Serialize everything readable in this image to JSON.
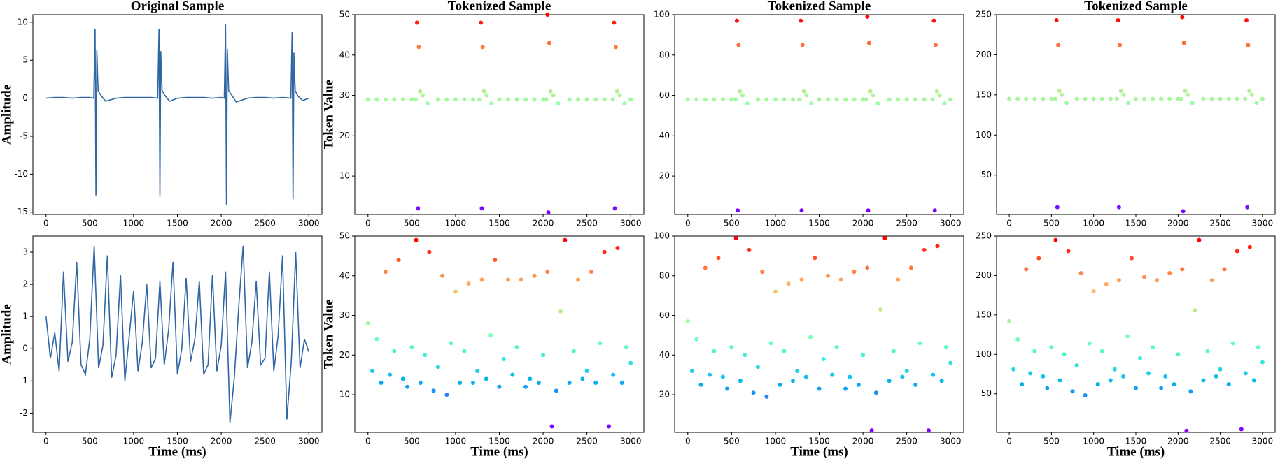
{
  "chart_data": [
    {
      "type": "line",
      "title": "Original Sample",
      "ylabel": "Amplitude",
      "color": "#2f66a3",
      "x": [
        0,
        100,
        200,
        300,
        400,
        500,
        545,
        560,
        570,
        580,
        595,
        625,
        680,
        800,
        900,
        1000,
        1100,
        1200,
        1275,
        1290,
        1300,
        1310,
        1325,
        1355,
        1410,
        1500,
        1600,
        1700,
        1800,
        1900,
        2000,
        2035,
        2050,
        2060,
        2070,
        2085,
        2115,
        2170,
        2300,
        2400,
        2500,
        2600,
        2700,
        2795,
        2810,
        2820,
        2830,
        2845,
        2875,
        2930,
        3000
      ],
      "values": [
        0,
        0.1,
        0.1,
        0,
        0.1,
        0.1,
        0,
        9.1,
        -12.8,
        6.3,
        1,
        0.4,
        -0.4,
        0,
        0.1,
        0.1,
        0.1,
        0.1,
        0,
        9.1,
        -12.8,
        6.2,
        1,
        0.4,
        -0.4,
        0,
        0.1,
        0.1,
        0.1,
        0,
        0.1,
        0,
        9.7,
        -14,
        6.5,
        1,
        0.5,
        -0.5,
        0,
        0.1,
        0.1,
        0,
        0.1,
        0,
        8.7,
        -13.3,
        6,
        1,
        0.3,
        -0.3,
        0
      ],
      "xlim": [
        -150,
        3150
      ],
      "xticks": [
        0,
        500,
        1000,
        1500,
        2000,
        2500,
        3000
      ],
      "ylim": [
        -15.3,
        11
      ],
      "yticks": [
        -15,
        -10,
        -5,
        0,
        5,
        10
      ]
    },
    {
      "type": "scatter",
      "title": "Tokenized Sample",
      "ylabel": "Token Value",
      "colormap": "rainbow",
      "x": [
        0,
        100,
        200,
        300,
        400,
        500,
        545,
        560,
        570,
        580,
        595,
        625,
        680,
        800,
        900,
        1000,
        1100,
        1200,
        1275,
        1290,
        1300,
        1310,
        1325,
        1355,
        1410,
        1500,
        1600,
        1700,
        1800,
        1900,
        2000,
        2035,
        2050,
        2060,
        2070,
        2085,
        2115,
        2170,
        2300,
        2400,
        2500,
        2600,
        2700,
        2795,
        2810,
        2820,
        2830,
        2845,
        2875,
        2930,
        3000
      ],
      "values": [
        29,
        29,
        29,
        29,
        29,
        29,
        29,
        48,
        2,
        42,
        31,
        30,
        28,
        29,
        29,
        29,
        29,
        29,
        29,
        48,
        2,
        42,
        31,
        30,
        28,
        29,
        29,
        29,
        29,
        29,
        29,
        29,
        50,
        1,
        43,
        31,
        30,
        28,
        29,
        29,
        29,
        29,
        29,
        29,
        48,
        2,
        42,
        31,
        30,
        28,
        29
      ],
      "xlim": [
        -150,
        3150
      ],
      "xticks": [
        0,
        500,
        1000,
        1500,
        2000,
        2500,
        3000
      ],
      "ylim": [
        0.5,
        50
      ],
      "yticks": [
        10,
        20,
        30,
        40,
        50
      ]
    },
    {
      "type": "scatter",
      "title": "Tokenized Sample",
      "colormap": "rainbow",
      "x": [
        0,
        100,
        200,
        300,
        400,
        500,
        545,
        560,
        570,
        580,
        595,
        625,
        680,
        800,
        900,
        1000,
        1100,
        1200,
        1275,
        1290,
        1300,
        1310,
        1325,
        1355,
        1410,
        1500,
        1600,
        1700,
        1800,
        1900,
        2000,
        2035,
        2050,
        2060,
        2070,
        2085,
        2115,
        2170,
        2300,
        2400,
        2500,
        2600,
        2700,
        2795,
        2810,
        2820,
        2830,
        2845,
        2875,
        2930,
        3000
      ],
      "values": [
        58,
        58,
        58,
        58,
        58,
        58,
        58,
        97,
        3,
        85,
        62,
        60,
        56,
        58,
        58,
        58,
        58,
        58,
        58,
        97,
        3,
        85,
        62,
        60,
        56,
        58,
        58,
        58,
        58,
        58,
        58,
        58,
        99,
        3,
        86,
        62,
        60,
        56,
        58,
        58,
        58,
        58,
        58,
        58,
        97,
        3,
        85,
        62,
        60,
        56,
        58
      ],
      "xlim": [
        -150,
        3150
      ],
      "xticks": [
        0,
        500,
        1000,
        1500,
        2000,
        2500,
        3000
      ],
      "ylim": [
        1,
        100
      ],
      "yticks": [
        20,
        40,
        60,
        80,
        100
      ]
    },
    {
      "type": "scatter",
      "title": "Tokenized Sample",
      "colormap": "rainbow",
      "x": [
        0,
        100,
        200,
        300,
        400,
        500,
        545,
        560,
        570,
        580,
        595,
        625,
        680,
        800,
        900,
        1000,
        1100,
        1200,
        1275,
        1290,
        1300,
        1310,
        1325,
        1355,
        1410,
        1500,
        1600,
        1700,
        1800,
        1900,
        2000,
        2035,
        2050,
        2060,
        2070,
        2085,
        2115,
        2170,
        2300,
        2400,
        2500,
        2600,
        2700,
        2795,
        2810,
        2820,
        2830,
        2845,
        2875,
        2930,
        3000
      ],
      "values": [
        145,
        145,
        145,
        145,
        145,
        145,
        145,
        243,
        10,
        212,
        155,
        150,
        140,
        145,
        145,
        145,
        145,
        145,
        145,
        243,
        10,
        212,
        155,
        150,
        140,
        145,
        145,
        145,
        145,
        145,
        145,
        145,
        247,
        5,
        215,
        155,
        150,
        140,
        145,
        145,
        145,
        145,
        145,
        145,
        243,
        10,
        212,
        155,
        150,
        140,
        145
      ],
      "xlim": [
        -150,
        3150
      ],
      "xticks": [
        0,
        500,
        1000,
        1500,
        2000,
        2500,
        3000
      ],
      "ylim": [
        1,
        250
      ],
      "yticks": [
        50,
        100,
        150,
        200,
        250
      ]
    },
    {
      "type": "line",
      "ylabel": "Amplitude",
      "xlabel": "Time (ms)",
      "color": "#2f66a3",
      "x": [
        0,
        50,
        100,
        150,
        200,
        250,
        300,
        350,
        400,
        450,
        500,
        550,
        600,
        650,
        700,
        750,
        800,
        850,
        900,
        950,
        1000,
        1050,
        1100,
        1150,
        1200,
        1250,
        1300,
        1350,
        1400,
        1450,
        1500,
        1550,
        1600,
        1650,
        1700,
        1750,
        1800,
        1850,
        1900,
        1950,
        2000,
        2050,
        2100,
        2150,
        2200,
        2250,
        2300,
        2350,
        2400,
        2450,
        2500,
        2550,
        2600,
        2650,
        2700,
        2750,
        2800,
        2850,
        2900,
        2950,
        3000
      ],
      "values": [
        1.0,
        -0.3,
        0.5,
        -0.7,
        2.4,
        -0.4,
        0.2,
        2.7,
        -0.5,
        -0.8,
        0.3,
        3.2,
        -0.6,
        0.1,
        2.9,
        -0.9,
        -0.2,
        2.3,
        -1.0,
        0.4,
        1.8,
        -0.7,
        0.2,
        2.0,
        -0.6,
        -0.3,
        2.1,
        -0.5,
        0.6,
        2.7,
        -0.8,
        0.0,
        2.2,
        -0.4,
        0.3,
        2.1,
        -0.8,
        -0.5,
        2.3,
        -0.7,
        0.1,
        2.4,
        -2.3,
        -0.9,
        1.3,
        3.2,
        -0.6,
        0.2,
        2.1,
        -0.5,
        -0.3,
        2.4,
        -0.7,
        0.4,
        2.9,
        -2.2,
        -0.4,
        3.0,
        -0.6,
        0.3,
        -0.1
      ],
      "xlim": [
        -150,
        3150
      ],
      "xticks": [
        0,
        500,
        1000,
        1500,
        2000,
        2500,
        3000
      ],
      "ylim": [
        -2.6,
        3.5
      ],
      "yticks": [
        -2,
        -1,
        0,
        1,
        2,
        3
      ]
    },
    {
      "type": "scatter",
      "ylabel": "Token Value",
      "xlabel": "Time (ms)",
      "colormap": "rainbow",
      "x": [
        0,
        50,
        100,
        150,
        200,
        250,
        300,
        350,
        400,
        450,
        500,
        550,
        600,
        650,
        700,
        750,
        800,
        850,
        900,
        950,
        1000,
        1050,
        1100,
        1150,
        1200,
        1250,
        1300,
        1350,
        1400,
        1450,
        1500,
        1550,
        1600,
        1650,
        1700,
        1750,
        1800,
        1850,
        1900,
        1950,
        2000,
        2050,
        2100,
        2150,
        2200,
        2250,
        2300,
        2350,
        2400,
        2450,
        2500,
        2550,
        2600,
        2650,
        2700,
        2750,
        2800,
        2850,
        2900,
        2950,
        3000
      ],
      "values": [
        28,
        16,
        24,
        13,
        41,
        15,
        21,
        44,
        14,
        12,
        22,
        49,
        13,
        20,
        46,
        11,
        17,
        40,
        10,
        23,
        36,
        13,
        21,
        38,
        13,
        16,
        39,
        14,
        25,
        44,
        12,
        19,
        39,
        15,
        22,
        39,
        12,
        14,
        40,
        13,
        20,
        41,
        2,
        11,
        31,
        49,
        13,
        21,
        39,
        14,
        16,
        41,
        13,
        23,
        46,
        2,
        15,
        47,
        13,
        22,
        18
      ],
      "xlim": [
        -150,
        3150
      ],
      "xticks": [
        0,
        500,
        1000,
        1500,
        2000,
        2500,
        3000
      ],
      "ylim": [
        0.5,
        50
      ],
      "yticks": [
        10,
        20,
        30,
        40,
        50
      ]
    },
    {
      "type": "scatter",
      "xlabel": "Time (ms)",
      "colormap": "rainbow",
      "x": [
        0,
        50,
        100,
        150,
        200,
        250,
        300,
        350,
        400,
        450,
        500,
        550,
        600,
        650,
        700,
        750,
        800,
        850,
        900,
        950,
        1000,
        1050,
        1100,
        1150,
        1200,
        1250,
        1300,
        1350,
        1400,
        1450,
        1500,
        1550,
        1600,
        1650,
        1700,
        1750,
        1800,
        1850,
        1900,
        1950,
        2000,
        2050,
        2100,
        2150,
        2200,
        2250,
        2300,
        2350,
        2400,
        2450,
        2500,
        2550,
        2600,
        2650,
        2700,
        2750,
        2800,
        2850,
        2900,
        2950,
        3000
      ],
      "values": [
        57,
        32,
        48,
        25,
        84,
        30,
        42,
        89,
        29,
        23,
        44,
        99,
        27,
        40,
        93,
        21,
        34,
        82,
        19,
        46,
        72,
        25,
        42,
        76,
        27,
        32,
        78,
        29,
        49,
        89,
        23,
        38,
        80,
        30,
        44,
        78,
        23,
        29,
        82,
        25,
        40,
        84,
        2,
        21,
        63,
        99,
        27,
        42,
        78,
        29,
        32,
        84,
        25,
        46,
        93,
        2,
        30,
        95,
        27,
        44,
        36
      ],
      "xlim": [
        -150,
        3150
      ],
      "xticks": [
        0,
        500,
        1000,
        1500,
        2000,
        2500,
        3000
      ],
      "ylim": [
        1,
        100
      ],
      "yticks": [
        20,
        40,
        60,
        80,
        100
      ]
    },
    {
      "type": "scatter",
      "xlabel": "Time (ms)",
      "colormap": "rainbow",
      "x": [
        0,
        50,
        100,
        150,
        200,
        250,
        300,
        350,
        400,
        450,
        500,
        550,
        600,
        650,
        700,
        750,
        800,
        850,
        900,
        950,
        1000,
        1050,
        1100,
        1150,
        1200,
        1250,
        1300,
        1350,
        1400,
        1450,
        1500,
        1550,
        1600,
        1650,
        1700,
        1750,
        1800,
        1850,
        1900,
        1950,
        2000,
        2050,
        2100,
        2150,
        2200,
        2250,
        2300,
        2350,
        2400,
        2450,
        2500,
        2550,
        2600,
        2650,
        2700,
        2750,
        2800,
        2850,
        2900,
        2950,
        3000
      ],
      "values": [
        142,
        81,
        119,
        62,
        208,
        76,
        104,
        222,
        72,
        57,
        109,
        245,
        67,
        100,
        231,
        53,
        86,
        203,
        48,
        114,
        180,
        62,
        104,
        189,
        67,
        81,
        194,
        72,
        123,
        222,
        57,
        95,
        198,
        76,
        109,
        194,
        57,
        72,
        203,
        62,
        100,
        208,
        3,
        53,
        156,
        245,
        67,
        104,
        194,
        72,
        81,
        208,
        62,
        114,
        231,
        5,
        76,
        236,
        67,
        109,
        90
      ],
      "xlim": [
        -150,
        3150
      ],
      "xticks": [
        0,
        500,
        1000,
        1500,
        2000,
        2500,
        3000
      ],
      "ylim": [
        1,
        250
      ],
      "yticks": [
        50,
        100,
        150,
        200,
        250
      ]
    }
  ]
}
